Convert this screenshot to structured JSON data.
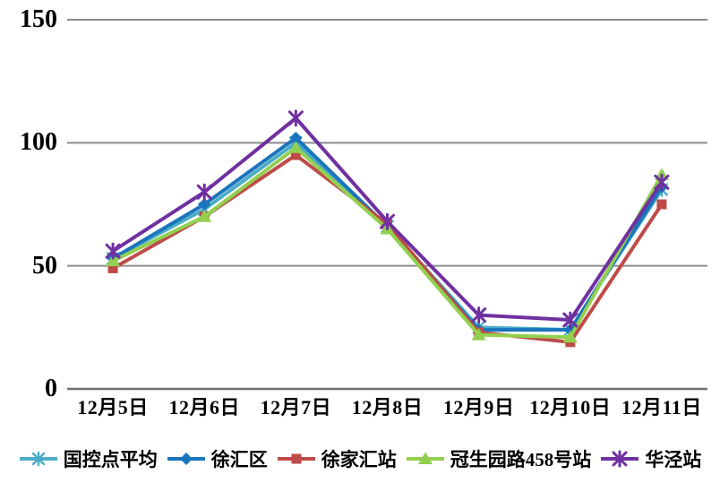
{
  "chart_data": {
    "type": "line",
    "categories": [
      "12月5日",
      "12月6日",
      "12月7日",
      "12月8日",
      "12月9日",
      "12月10日",
      "12月11日"
    ],
    "series": [
      {
        "name": "国控点平均",
        "slug": "national-control-average",
        "color": "#4BACC6",
        "marker": "asterisk",
        "values": [
          53,
          73,
          100,
          66,
          25,
          24,
          81
        ]
      },
      {
        "name": "徐汇区",
        "slug": "xuhui-district",
        "color": "#1B75BC",
        "marker": "diamond",
        "values": [
          53,
          75,
          102,
          66,
          24,
          24,
          82
        ]
      },
      {
        "name": "徐家汇站",
        "slug": "xujiahui-station",
        "color": "#BE4B48",
        "marker": "square",
        "values": [
          49,
          70,
          95,
          67,
          23,
          19,
          75
        ]
      },
      {
        "name": "冠生园路458号站",
        "slug": "guanshengyuan-rd-458-station",
        "color": "#92D050",
        "marker": "triangle",
        "values": [
          52,
          70,
          98,
          65,
          22,
          21,
          87
        ]
      },
      {
        "name": "华泾站",
        "slug": "huajing-station",
        "color": "#7030A0",
        "marker": "star",
        "values": [
          56,
          80,
          110,
          68,
          30,
          28,
          84
        ]
      }
    ],
    "yticks": [
      0,
      50,
      100,
      150
    ],
    "ylim": [
      0,
      150
    ],
    "grid": true,
    "gridline_color": "#8C8C8C",
    "axis_line_color": "#707070",
    "legend_position": "bottom",
    "title": "",
    "xlabel": "",
    "ylabel": ""
  }
}
